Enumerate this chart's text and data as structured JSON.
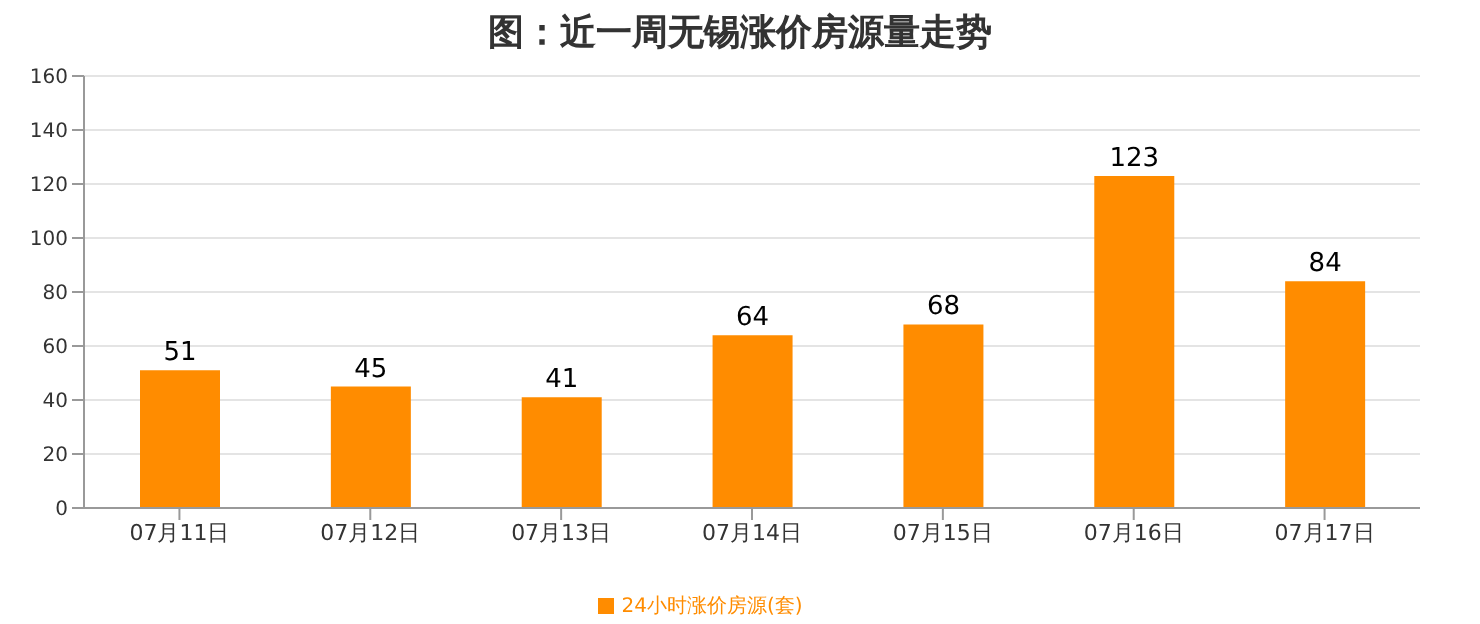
{
  "chart_data": {
    "type": "bar",
    "title": "图：近一周无锡涨价房源量走势",
    "categories": [
      "07月11日",
      "07月12日",
      "07月13日",
      "07月14日",
      "07月15日",
      "07月16日",
      "07月17日"
    ],
    "series": [
      {
        "name": "24小时涨价房源(套)",
        "color": "#ff8c00",
        "values": [
          51,
          45,
          41,
          64,
          68,
          123,
          84
        ]
      }
    ],
    "ylim": [
      0,
      160
    ],
    "yticks": [
      0,
      20,
      40,
      60,
      80,
      100,
      120,
      140,
      160
    ],
    "grid": "y",
    "legend": "bottom",
    "data_labels": true
  }
}
